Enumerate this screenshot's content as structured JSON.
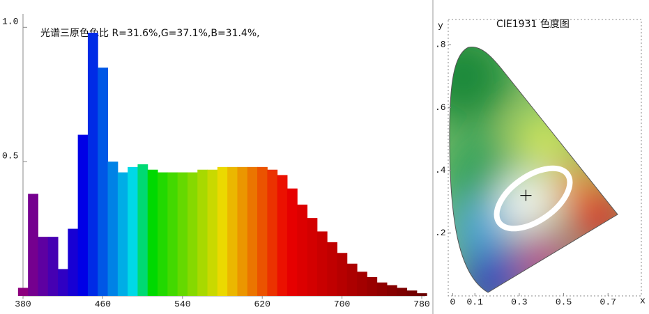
{
  "chart_data": [
    {
      "type": "spectrum",
      "title": "光谱三原色色比  R=31.6%,G=37.1%,B=31.4%,",
      "x": [
        380,
        390,
        400,
        410,
        420,
        430,
        440,
        450,
        460,
        470,
        480,
        490,
        500,
        510,
        520,
        530,
        540,
        550,
        560,
        570,
        580,
        590,
        600,
        610,
        620,
        630,
        640,
        650,
        660,
        670,
        680,
        690,
        700,
        710,
        720,
        730,
        740,
        750,
        760,
        770,
        780
      ],
      "values": [
        0.03,
        0.38,
        0.22,
        0.22,
        0.1,
        0.25,
        0.6,
        0.98,
        0.85,
        0.5,
        0.46,
        0.48,
        0.49,
        0.47,
        0.46,
        0.46,
        0.46,
        0.46,
        0.47,
        0.47,
        0.48,
        0.48,
        0.48,
        0.48,
        0.48,
        0.47,
        0.45,
        0.4,
        0.34,
        0.29,
        0.24,
        0.2,
        0.16,
        0.12,
        0.09,
        0.07,
        0.05,
        0.04,
        0.03,
        0.02,
        0.01
      ],
      "xlim": [
        380,
        780
      ],
      "xticks": [
        380,
        460,
        540,
        620,
        700,
        780
      ],
      "ylim": [
        0,
        1.05
      ],
      "yticks": [
        0.5,
        {
          "value": 1,
          "label": "1.0"
        }
      ]
    },
    {
      "type": "cie",
      "title": "CIE1931 色度图",
      "x_label": "x",
      "y_label": "y",
      "xlim": [
        -0.02,
        0.85
      ],
      "xticks": [
        0,
        0.1,
        0.3,
        0.5,
        0.7
      ],
      "ylim": [
        0,
        0.88
      ],
      "yticks": [
        {
          "value": 0.2,
          "label": ".2"
        },
        {
          "value": 0.4,
          "label": ".4"
        },
        {
          "value": 0.6,
          "label": ".6"
        },
        {
          "value": 0.8,
          "label": ".8"
        }
      ],
      "point": {
        "x": 0.33,
        "y": 0.32
      }
    }
  ]
}
